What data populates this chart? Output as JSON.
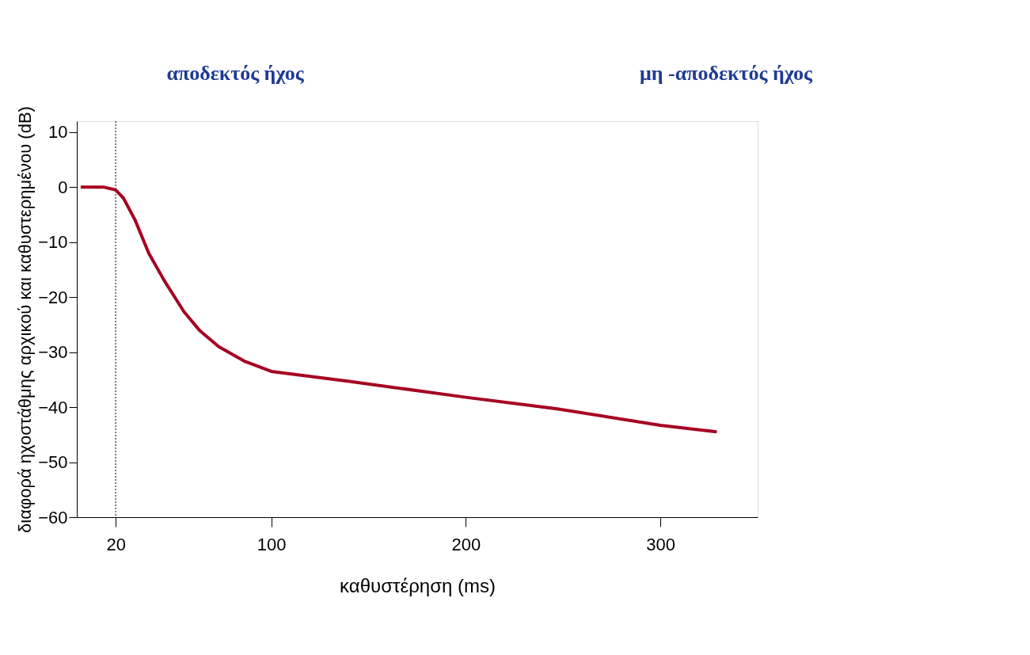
{
  "chart_data": {
    "type": "line",
    "xlabel": "καθυστέρηση (ms)",
    "ylabel": "διαφορά ηχοστάθμης αρχικού και καθυστερημένου (dB)",
    "x": [
      2,
      10,
      14,
      20,
      24,
      30,
      37,
      45,
      55,
      63,
      73,
      86,
      100,
      140,
      200,
      247,
      300,
      329
    ],
    "series": [
      {
        "color": "#a50021",
        "values": [
          0,
          0,
          0,
          -0.5,
          -2,
          -6,
          -12,
          -17,
          -22.6,
          -26,
          -29,
          -31.6,
          -33.5,
          -35.3,
          -38.2,
          -40.3,
          -43.3,
          -44.5
        ]
      }
    ],
    "xlim": [
      0,
      350
    ],
    "xticks": [
      20,
      100,
      200,
      300
    ],
    "ylim": [
      -60,
      12
    ],
    "yticks": [
      -60,
      -50,
      -40,
      -30,
      -20,
      -10,
      0,
      10
    ],
    "ref_lines": [
      {
        "axis": "x",
        "value": 20,
        "color": "#555555",
        "line_style": "dotted"
      }
    ],
    "annotations": [
      "αποδεκτός ήχος",
      "μη -αποδεκτός ήχος"
    ],
    "grid": false,
    "marker": "none",
    "line_style": "solid"
  }
}
